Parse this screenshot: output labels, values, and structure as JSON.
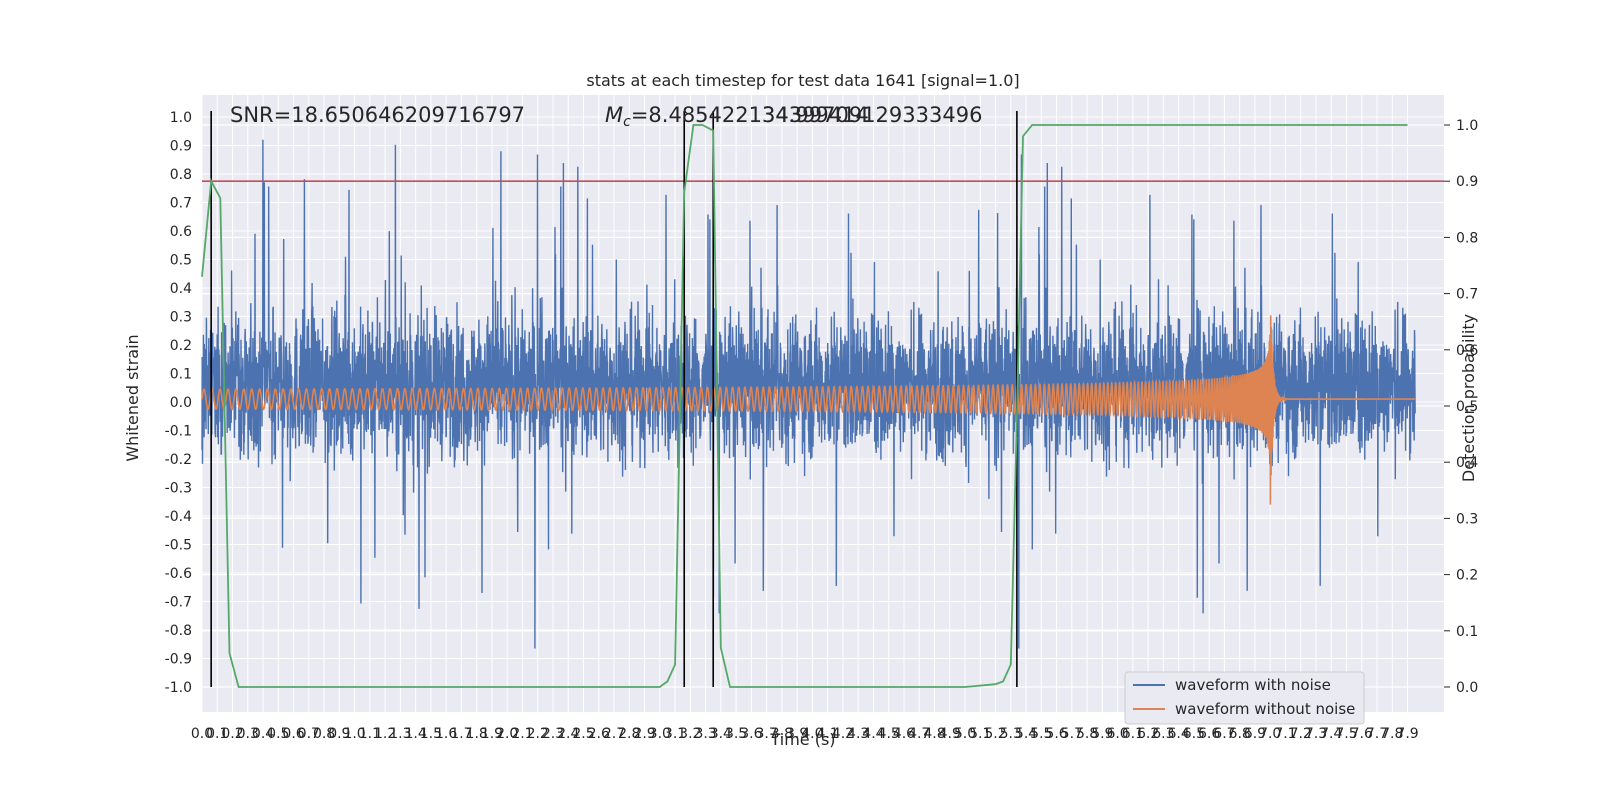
{
  "chart_data": {
    "type": "line",
    "title": "stats at each timestep for test data 1641 [signal=1.0]",
    "xlabel": "Time (s)",
    "ylabel": "Whitened strain",
    "y2label": "Detection probability",
    "xlim": [
      0.0,
      7.95
    ],
    "ylim": [
      -1.1,
      1.1
    ],
    "y2lim": [
      -0.045,
      1.015
    ],
    "xticks": [
      "0.0",
      "0.1",
      "0.2",
      "0.3",
      "0.4",
      "0.5",
      "0.6",
      "0.7",
      "0.8",
      "0.9",
      "1.0",
      "1.1",
      "1.2",
      "1.3",
      "1.4",
      "1.5",
      "1.6",
      "1.7",
      "1.8",
      "1.9",
      "2.0",
      "2.1",
      "2.2",
      "2.3",
      "2.4",
      "2.5",
      "2.6",
      "2.7",
      "2.8",
      "2.9",
      "3.0",
      "3.1",
      "3.2",
      "3.3",
      "3.4",
      "3.5",
      "3.6",
      "3.7",
      "3.8",
      "3.9",
      "4.0",
      "4.1",
      "4.2",
      "4.3",
      "4.4",
      "4.5",
      "4.6",
      "4.7",
      "4.8",
      "4.9",
      "5.0",
      "5.1",
      "5.2",
      "5.3",
      "5.4",
      "5.5",
      "5.6",
      "5.7",
      "5.8",
      "5.9",
      "6.0",
      "6.1",
      "6.2",
      "6.3",
      "6.4",
      "6.5",
      "6.6",
      "6.7",
      "6.8",
      "6.9",
      "7.0",
      "7.1",
      "7.2",
      "7.3",
      "7.4",
      "7.5",
      "7.6",
      "7.7",
      "7.8",
      "7.9"
    ],
    "yticks": [
      "1.0",
      "0.9",
      "0.8",
      "0.7",
      "0.6",
      "0.5",
      "0.4",
      "0.3",
      "0.2",
      "0.1",
      "0.0",
      "-0.1",
      "-0.2",
      "-0.3",
      "-0.4",
      "-0.5",
      "-0.6",
      "-0.7",
      "-0.8",
      "-0.9",
      "-1.0"
    ],
    "y2ticks": [
      "1.0",
      "0.9",
      "0.8",
      "0.7",
      "0.6",
      "0.5",
      "0.4",
      "0.3",
      "0.2",
      "0.1",
      "0.0"
    ],
    "annotations": {
      "snr": "SNR=18.650646209716797",
      "mc": "=8.485422134399414",
      "mc_symbol": "M",
      "mc_sub": "c",
      "overlap": "34.99709129333496"
    },
    "legend": {
      "position": "lower-right",
      "entries": [
        "waveform with noise",
        "waveform without noise"
      ]
    },
    "colors": {
      "noise": "#4c72b0",
      "clean": "#dd8452",
      "probability": "#55a868",
      "threshold": "#c44e52",
      "markers": "#000000",
      "plot_bg": "#eaeaf2"
    },
    "threshold": 0.9,
    "vertical_lines": [
      0.06,
      3.16,
      3.35,
      5.34
    ],
    "signal_merger_time": 7.0,
    "series": [
      {
        "name": "Detection probability",
        "axis": "right",
        "x": [
          0.0,
          0.06,
          0.12,
          0.18,
          0.24,
          0.3,
          2.6,
          3.0,
          3.05,
          3.1,
          3.16,
          3.22,
          3.28,
          3.35,
          3.4,
          3.46,
          3.52,
          5.0,
          5.2,
          5.25,
          5.3,
          5.34,
          5.38,
          5.44,
          7.9
        ],
        "y": [
          0.73,
          0.9,
          0.87,
          0.06,
          0.0,
          0.0,
          0.0,
          0.0,
          0.01,
          0.04,
          0.88,
          1.0,
          1.0,
          0.99,
          0.07,
          0.0,
          0.0,
          0.0,
          0.005,
          0.01,
          0.04,
          0.48,
          0.98,
          1.0,
          1.0
        ]
      }
    ]
  }
}
